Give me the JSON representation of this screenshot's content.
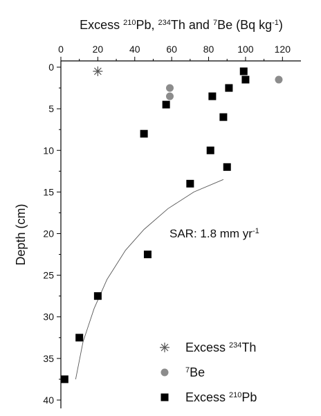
{
  "chart_data": {
    "type": "scatter",
    "title_parts": [
      {
        "text": "Excess "
      },
      {
        "text": "210",
        "sup": true
      },
      {
        "text": "Pb, "
      },
      {
        "text": "234",
        "sup": true
      },
      {
        "text": "Th and "
      },
      {
        "text": "7",
        "sup": true
      },
      {
        "text": "Be (Bq kg"
      },
      {
        "text": "-1",
        "sup": true
      },
      {
        "text": ")"
      }
    ],
    "y_label": "Depth (cm)",
    "xlim": [
      0,
      130
    ],
    "xticks": [
      0,
      20,
      40,
      60,
      80,
      100,
      120
    ],
    "ylim": [
      -0.75,
      41
    ],
    "yticks": [
      0,
      5,
      10,
      15,
      20,
      25,
      30,
      35,
      40
    ],
    "y_inverted": true,
    "x_axis_position": "top",
    "legend": "lower right",
    "series": [
      {
        "name_parts": [
          {
            "text": "Excess "
          },
          {
            "text": "234",
            "sup": true
          },
          {
            "text": "Th"
          }
        ],
        "marker": "star",
        "color": "#555555",
        "x": [
          20
        ],
        "values": [
          0.5
        ]
      },
      {
        "name_parts": [
          {
            "text": "7",
            "sup": true
          },
          {
            "text": "Be"
          }
        ],
        "marker": "circle",
        "color": "#8c8c8c",
        "x": [
          59,
          59,
          118
        ],
        "values": [
          2.5,
          3.5,
          1.5
        ]
      },
      {
        "name_parts": [
          {
            "text": "Excess "
          },
          {
            "text": "210",
            "sup": true
          },
          {
            "text": "Pb"
          }
        ],
        "marker": "square",
        "color": "#000000",
        "x": [
          99,
          100,
          91,
          82,
          57,
          88,
          45,
          81,
          90,
          70,
          47,
          20,
          10,
          2
        ],
        "values": [
          0.5,
          1.5,
          2.5,
          3.5,
          4.5,
          6,
          8,
          10,
          12,
          14,
          22.5,
          27.5,
          32.5,
          37.5
        ]
      }
    ],
    "fit": {
      "color": "#555555",
      "x": [
        8,
        12,
        18,
        25,
        35,
        45,
        58,
        72,
        88
      ],
      "values": [
        37.5,
        33,
        29,
        25.5,
        22,
        19.5,
        17,
        15,
        13.5
      ]
    },
    "annotation_parts": [
      {
        "text": "SAR: 1.8 mm yr"
      },
      {
        "text": "-1",
        "sup": true
      }
    ]
  }
}
